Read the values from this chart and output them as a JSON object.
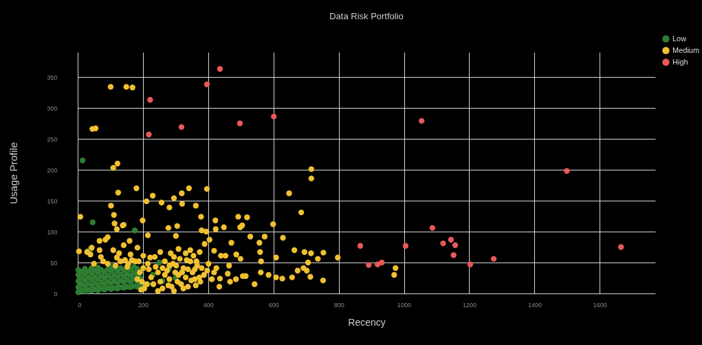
{
  "chart_data": {
    "type": "scatter",
    "title": "Data Risk Portfolio",
    "xlabel": "Recency",
    "ylabel": "Usage Profile",
    "xlim": [
      0,
      1770
    ],
    "ylim": [
      0,
      390
    ],
    "xticks": [
      0,
      200,
      400,
      600,
      800,
      1000,
      1200,
      1400,
      1600
    ],
    "yticks": [
      0,
      50,
      100,
      150,
      200,
      250,
      300,
      350
    ],
    "grid": true,
    "legend": "top right",
    "marker": "circle",
    "series": [
      {
        "name": "Low",
        "color": "#2e7d32",
        "x": [
          2,
          2,
          2,
          2,
          2,
          12,
          12,
          12,
          12,
          22,
          22,
          22,
          22,
          22,
          32,
          32,
          32,
          32,
          42,
          42,
          42,
          42,
          42,
          52,
          52,
          52,
          52,
          62,
          62,
          62,
          62,
          62,
          72,
          72,
          72,
          72,
          82,
          82,
          82,
          82,
          92,
          92,
          92,
          92,
          102,
          102,
          102,
          102,
          102,
          112,
          112,
          112,
          112,
          122,
          122,
          122,
          122,
          132,
          132,
          132,
          132,
          142,
          142,
          142,
          142,
          152,
          152,
          152,
          152,
          162,
          162,
          162,
          162,
          172,
          172,
          172,
          172,
          182,
          182,
          182,
          182,
          192,
          192,
          192,
          230,
          260,
          280,
          300,
          320,
          250,
          215,
          175,
          46,
          15,
          40,
          30
        ],
        "values": [
          2,
          10,
          20,
          30,
          38,
          5,
          15,
          25,
          35,
          3,
          12,
          22,
          32,
          40,
          6,
          16,
          26,
          36,
          4,
          13,
          23,
          33,
          41,
          7,
          17,
          27,
          37,
          5,
          14,
          24,
          34,
          42,
          8,
          18,
          28,
          38,
          6,
          15,
          25,
          35,
          9,
          19,
          29,
          39,
          7,
          16,
          26,
          36,
          43,
          9,
          20,
          30,
          40,
          8,
          17,
          27,
          37,
          10,
          21,
          31,
          41,
          9,
          18,
          28,
          38,
          11,
          22,
          32,
          42,
          10,
          19,
          29,
          39,
          12,
          23,
          33,
          43,
          11,
          20,
          30,
          40,
          14,
          25,
          35,
          30,
          20,
          40,
          25,
          35,
          50,
          15,
          102,
          115,
          215,
          72,
          68
        ]
      },
      {
        "name": "Medium",
        "color": "#f0c030",
        "x": [
          4,
          8,
          124,
          102,
          111,
          113,
          138,
          120,
          180,
          211,
          230,
          199,
          215,
          257,
          281,
          295,
          278,
          305,
          319,
          341,
          301,
          320,
          362,
          396,
          378,
          380,
          394,
          422,
          423,
          448,
          492,
          519,
          498,
          504,
          471,
          529,
          557,
          573,
          599,
          629,
          608,
          648,
          685,
          664,
          695,
          715,
          736,
          753,
          559,
          562,
          561,
          585,
          542,
          608,
          627,
          657,
          674,
          692,
          702,
          713,
          752,
          706,
          506,
          485,
          467,
          434,
          425,
          418,
          464,
          460,
          439,
          418,
          404,
          389,
          374,
          364,
          359,
          436,
          453,
          401,
          486,
          499,
          515,
          29,
          39,
          67,
          85,
          92,
          67,
          109,
          127,
          141,
          155,
          176,
          159,
          183,
          92,
          71,
          50,
          120,
          162,
          43,
          78,
          141,
          131,
          145,
          166,
          116,
          152,
          190,
          197,
          204,
          215,
          225,
          232,
          239,
          246,
          253,
          260,
          267,
          274,
          281,
          288,
          295,
          302,
          309,
          317,
          324,
          331,
          338,
          345,
          352,
          359,
          366,
          201,
          222,
          253,
          285,
          309,
          331,
          345,
          194,
          246,
          295,
          324,
          362,
          376,
          387,
          397,
          411,
          380,
          373,
          218,
          236,
          267,
          278,
          299,
          313,
          338,
          355,
          211,
          187,
          201,
          260,
          292,
          320,
          348,
          183,
          281,
          306,
          334,
          797,
          974,
          970,
          101,
          149,
          168,
          45,
          55,
          109,
          122,
          716,
          716
        ],
        "values": [
          68,
          124,
          163,
          142,
          127,
          113,
          110,
          104,
          170,
          149,
          158,
          118,
          94,
          147,
          139,
          154,
          106,
          109,
          162,
          170,
          93,
          145,
          142,
          169,
          124,
          102,
          100,
          118,
          104,
          107,
          124,
          123,
          107,
          110,
          82,
          92,
          82,
          92,
          112,
          90,
          58,
          162,
          131,
          70,
          67,
          65,
          56,
          66,
          67,
          52,
          34,
          30,
          15,
          26,
          24,
          26,
          37,
          41,
          37,
          27,
          21,
          50,
          28,
          23,
          19,
          11,
          41,
          34,
          45,
          32,
          61,
          69,
          87,
          80,
          67,
          52,
          39,
          24,
          61,
          48,
          63,
          56,
          28,
          67,
          63,
          85,
          87,
          91,
          70,
          70,
          65,
          78,
          48,
          52,
          85,
          74,
          48,
          59,
          48,
          58,
          63,
          74,
          52,
          111,
          52,
          54,
          54,
          45,
          43,
          34,
          19,
          8,
          48,
          26,
          15,
          43,
          34,
          19,
          8,
          52,
          37,
          23,
          11,
          59,
          45,
          30,
          15,
          41,
          26,
          11,
          52,
          34,
          23,
          45,
          61,
          58,
          67,
          65,
          72,
          65,
          70,
          6,
          4,
          4,
          8,
          13,
          19,
          30,
          37,
          23,
          41,
          26,
          39,
          59,
          30,
          13,
          34,
          56,
          39,
          61,
          15,
          52,
          41,
          41,
          48,
          34,
          21,
          23,
          45,
          19,
          54,
          58,
          41,
          30,
          334,
          334,
          333,
          266,
          267,
          203,
          210,
          201,
          186
        ]
      },
      {
        "name": "High",
        "color": "#e85858",
        "x": [
          436,
          396,
          222,
          218,
          318,
          497,
          601,
          1054,
          1499,
          866,
          892,
          919,
          932,
          1005,
          1087,
          1120,
          1144,
          1157,
          1152,
          1203,
          1275,
          1665
        ],
        "values": [
          363,
          338,
          313,
          257,
          269,
          275,
          286,
          279,
          198,
          77,
          46,
          47,
          50,
          77,
          106,
          81,
          87,
          78,
          62,
          47,
          56,
          75
        ]
      }
    ]
  }
}
